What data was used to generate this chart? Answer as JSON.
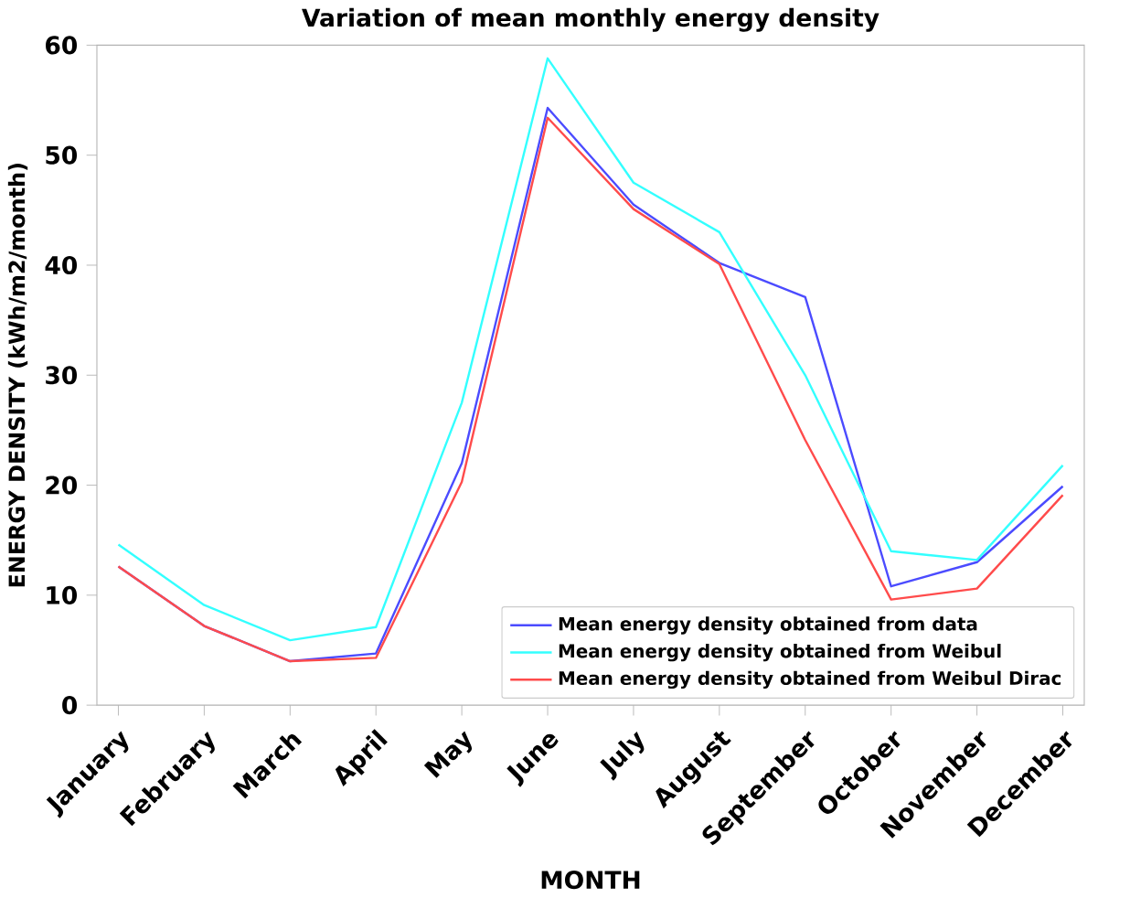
{
  "chart_data": {
    "type": "line",
    "title": "Variation of mean monthly energy density",
    "xlabel": "MONTH",
    "ylabel": "ENERGY DENSITY (kWh/m2/month)",
    "categories": [
      "January",
      "February",
      "March",
      "April",
      "May",
      "June",
      "July",
      "August",
      "September",
      "October",
      "November",
      "December"
    ],
    "series": [
      {
        "name": "Mean energy density obtained from data",
        "color": "#4b4bff",
        "values": [
          12.6,
          7.2,
          4.0,
          4.7,
          22,
          54.3,
          45.5,
          40.2,
          37.1,
          10.8,
          13,
          19.9
        ]
      },
      {
        "name": "Mean energy density obtained from Weibul",
        "color": "#33ffff",
        "values": [
          14.6,
          9.1,
          5.9,
          7.1,
          27.5,
          58.8,
          47.5,
          43,
          30,
          14,
          13.2,
          21.8
        ]
      },
      {
        "name": "Mean energy density obtained from Weibul Dirac",
        "color": "#ff4b4b",
        "values": [
          12.6,
          7.2,
          4.0,
          4.3,
          20.3,
          53.4,
          45.1,
          40.1,
          24.1,
          9.6,
          10.6,
          19.1
        ]
      }
    ],
    "ylim": [
      0,
      60
    ],
    "yticks": [
      0,
      10,
      20,
      30,
      40,
      50,
      60
    ],
    "legend": "bottom right",
    "grid": false,
    "marker": "none",
    "line_style": "solid"
  }
}
